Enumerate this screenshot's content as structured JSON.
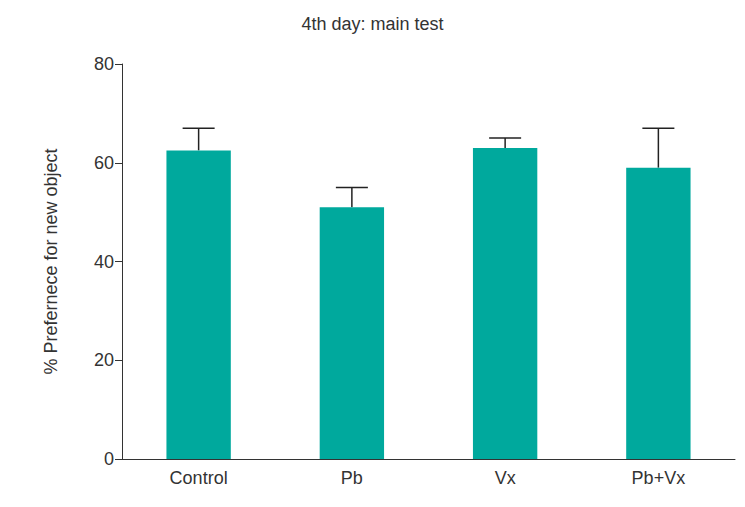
{
  "chart_data": {
    "type": "bar",
    "title": "4th day: main test",
    "y_label": "% Prefernece for new object",
    "categories": [
      "Control",
      "Pb",
      "Vx",
      "Pb+Vx"
    ],
    "values": [
      62.5,
      51,
      63,
      59
    ],
    "errors": [
      4.5,
      4,
      2,
      8
    ],
    "color": "#00a99d",
    "ylim": [
      0,
      80
    ],
    "yticks": [
      0,
      20,
      40,
      60,
      80
    ],
    "grid": false
  }
}
